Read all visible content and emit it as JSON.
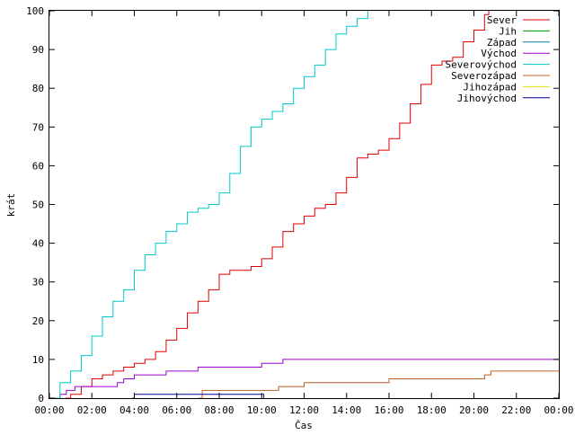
{
  "chart_data": {
    "type": "line",
    "xlabel": "Čas",
    "ylabel": "krát",
    "xlim": [
      0,
      24
    ],
    "ylim": [
      0,
      100
    ],
    "x_ticks": [
      "00:00",
      "02:00",
      "04:00",
      "06:00",
      "08:00",
      "10:00",
      "12:00",
      "14:00",
      "16:00",
      "18:00",
      "20:00",
      "22:00",
      "00:00"
    ],
    "y_ticks": [
      0,
      10,
      20,
      30,
      40,
      50,
      60,
      70,
      80,
      90,
      100
    ],
    "legend_position": "top-right",
    "grid": false,
    "series": [
      {
        "name": "Sever",
        "color": "#e00000",
        "x": [
          0.75,
          1.0,
          1.5,
          2.0,
          2.5,
          3.0,
          3.5,
          4.0,
          4.5,
          5.0,
          5.5,
          6.0,
          6.5,
          7.0,
          7.5,
          8.0,
          8.5,
          9.0,
          9.5,
          10.0,
          10.5,
          11.0,
          11.5,
          12.0,
          12.5,
          13.0,
          13.5,
          14.0,
          14.5,
          15.0,
          15.5,
          16.0,
          16.5,
          17.0,
          17.5,
          18.0,
          18.5,
          19.0,
          19.5,
          20.0,
          20.5,
          20.7
        ],
        "y": [
          0,
          1,
          3,
          5,
          6,
          7,
          8,
          9,
          10,
          12,
          15,
          18,
          22,
          25,
          28,
          32,
          33,
          33,
          34,
          36,
          39,
          43,
          45,
          47,
          49,
          50,
          53,
          57,
          62,
          63,
          64,
          67,
          71,
          76,
          81,
          86,
          87,
          88,
          92,
          95,
          99,
          100
        ]
      },
      {
        "name": "Jih",
        "color": "#00a000",
        "x": [],
        "y": []
      },
      {
        "name": "Západ",
        "color": "#0080a0",
        "x": [],
        "y": []
      },
      {
        "name": "Východ",
        "color": "#a000d0",
        "x": [
          0.2,
          0.5,
          0.8,
          1.2,
          3.0,
          3.2,
          3.5,
          4.0,
          4.5,
          5.0,
          5.5,
          6.0,
          6.5,
          7.0,
          8.0,
          9.0,
          10.0,
          10.5,
          11.0,
          12.0,
          24.0
        ],
        "y": [
          0,
          1,
          2,
          3,
          3,
          4,
          5,
          6,
          6,
          6,
          7,
          7,
          7,
          8,
          8,
          8,
          9,
          9,
          10,
          10,
          10
        ]
      },
      {
        "name": "Severovýchod",
        "color": "#00c8c8",
        "x": [
          0.1,
          0.5,
          1.0,
          1.5,
          2.0,
          2.5,
          3.0,
          3.5,
          4.0,
          4.5,
          5.0,
          5.5,
          6.0,
          6.5,
          7.0,
          7.5,
          8.0,
          8.5,
          9.0,
          9.5,
          10.0,
          10.5,
          11.0,
          11.5,
          12.0,
          12.5,
          13.0,
          13.5,
          14.0,
          14.5,
          15.0
        ],
        "y": [
          0,
          4,
          7,
          11,
          16,
          21,
          25,
          28,
          33,
          37,
          40,
          43,
          45,
          48,
          49,
          50,
          53,
          58,
          65,
          70,
          72,
          74,
          76,
          80,
          83,
          86,
          90,
          94,
          96,
          98,
          100
        ]
      },
      {
        "name": "Severozápad",
        "color": "#c06020",
        "x": [
          7.0,
          7.2,
          10.0,
          10.8,
          11.0,
          12.0,
          12.5,
          16.0,
          16.5,
          20.5,
          20.8,
          24.0
        ],
        "y": [
          0,
          2,
          2,
          3,
          3,
          4,
          4,
          5,
          5,
          6,
          7,
          7
        ]
      },
      {
        "name": "Jihozápad",
        "color": "#e0e000",
        "x": [],
        "y": []
      },
      {
        "name": "Jihovýchod",
        "color": "#000090",
        "x": [
          3.9,
          4.0,
          10.0,
          10.1
        ],
        "y": [
          0,
          1,
          1,
          0
        ]
      }
    ]
  }
}
